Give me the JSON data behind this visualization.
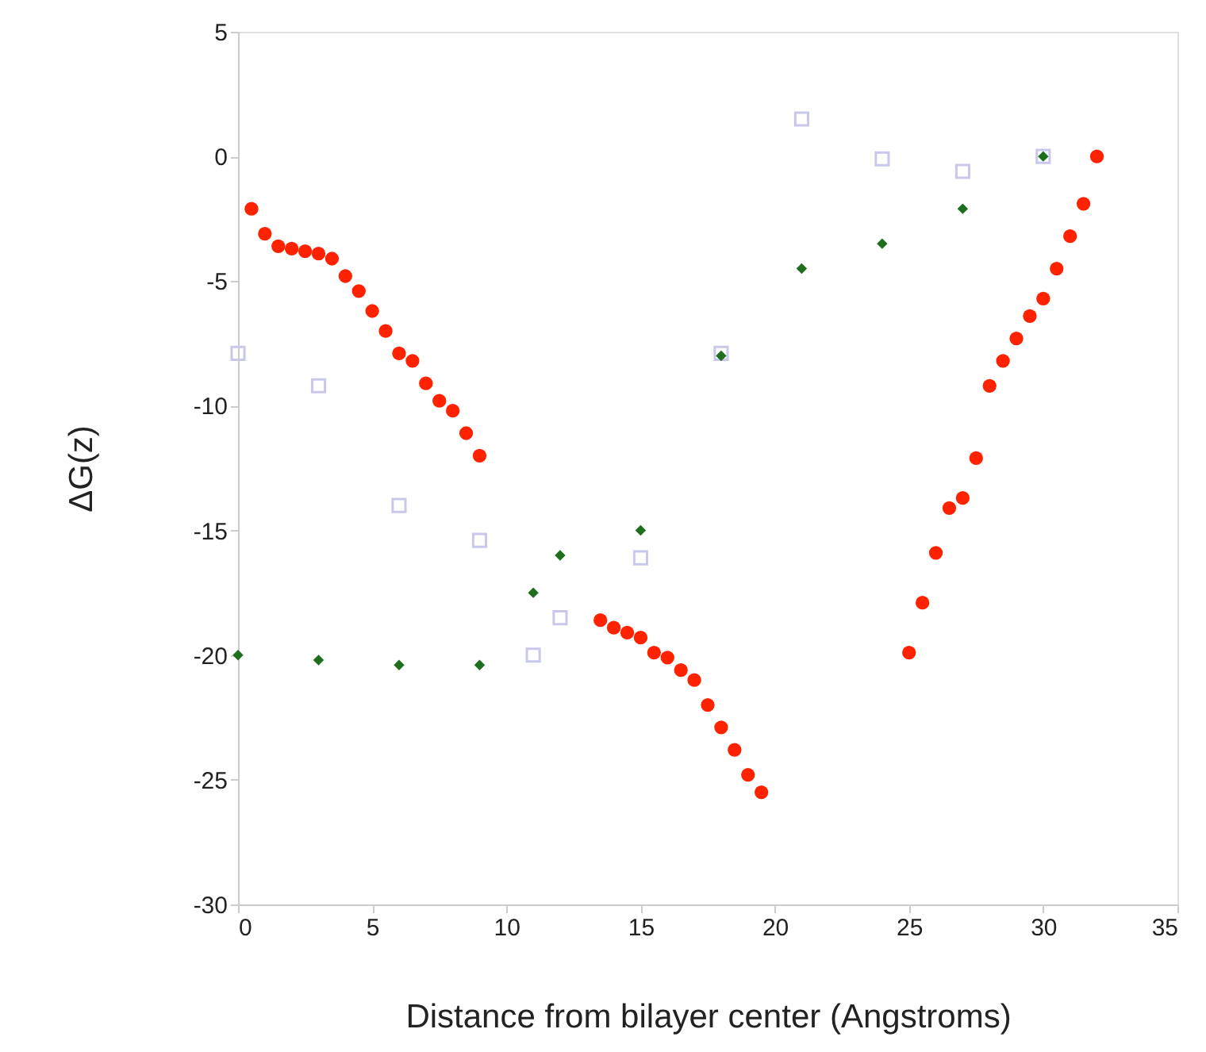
{
  "chart_data": {
    "type": "scatter",
    "xlabel": "Distance from bilayer center (Angstroms)",
    "ylabel": "ΔG(z)",
    "xlim": [
      0,
      35
    ],
    "ylim": [
      -30,
      5
    ],
    "xticks": [
      0,
      5,
      10,
      15,
      20,
      25,
      30,
      35
    ],
    "yticks": [
      5,
      0,
      -5,
      -10,
      -15,
      -20,
      -25,
      -30
    ],
    "grid": false,
    "series": [
      {
        "color": "#c8c8ea",
        "marker": "square",
        "x": [
          0,
          3,
          6,
          9,
          11,
          12,
          15,
          18,
          21,
          24,
          27,
          30
        ],
        "values": [
          -7.9,
          -9.2,
          -14,
          -15.4,
          -20,
          -18.5,
          -16.1,
          -7.9,
          1.5,
          -0.1,
          -0.6,
          0
        ]
      },
      {
        "color": "#1e6e1e",
        "marker": "diamond",
        "x": [
          0,
          3,
          6,
          9,
          11,
          12,
          15,
          18,
          21,
          24,
          27,
          30
        ],
        "values": [
          -20,
          -20.2,
          -20.4,
          -20.4,
          -17.5,
          -16,
          -15,
          -8,
          -4.5,
          -3.5,
          -2.1,
          0
        ]
      },
      {
        "color": "#ff2200",
        "marker": "circle",
        "x": [
          0.5,
          1,
          1.5,
          2,
          2.5,
          3,
          3.5,
          4,
          4.5,
          5,
          5.5,
          6,
          6.5,
          7,
          7.5,
          8,
          8.5,
          9,
          13.5,
          14,
          14.5,
          15,
          15.5,
          16,
          16.5,
          17,
          17.5,
          18,
          18.5,
          19,
          19.5,
          25,
          25.5,
          26,
          26.5,
          27,
          27.5,
          28,
          28.5,
          29,
          29.5,
          30,
          30.5,
          31,
          31.5,
          32
        ],
        "values": [
          -2.1,
          -3.1,
          -3.6,
          -3.7,
          -3.8,
          -3.9,
          -4.1,
          -4.8,
          -5.4,
          -6.2,
          -7,
          -7.9,
          -8.2,
          -9.1,
          -9.8,
          -10.2,
          -11.1,
          -12,
          -18.6,
          -18.9,
          -19.1,
          -19.3,
          -19.9,
          -20.1,
          -20.6,
          -21,
          -22,
          -22.9,
          -23.8,
          -24.8,
          -25.5,
          -19.9,
          -17.9,
          -15.9,
          -14.1,
          -13.7,
          -12.1,
          -9.2,
          -8.2,
          -7.3,
          -6.4,
          -5.7,
          -4.5,
          -3.2,
          -1.9,
          0
        ]
      }
    ]
  }
}
